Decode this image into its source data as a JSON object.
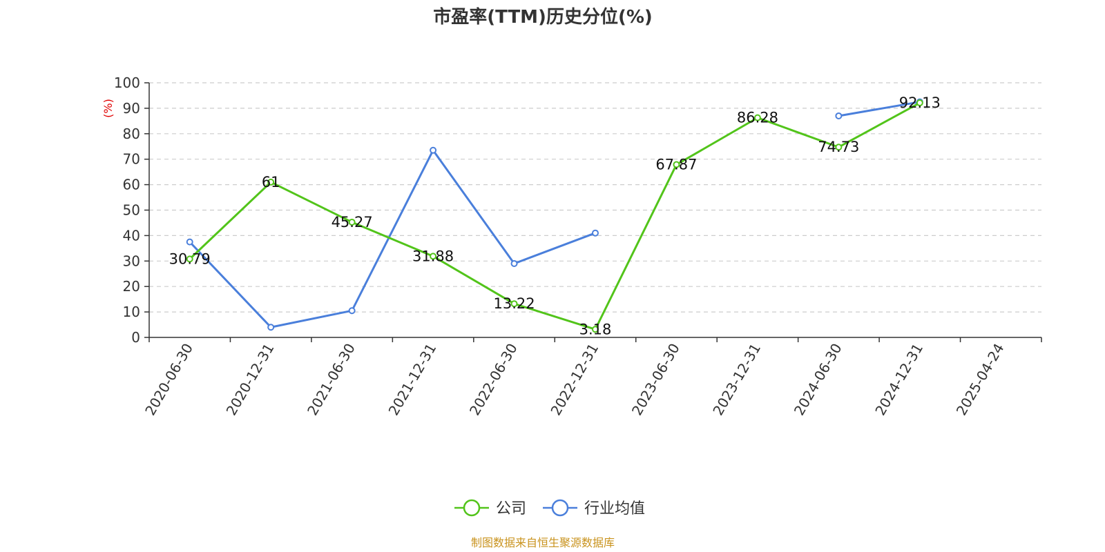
{
  "chart_data": {
    "type": "line",
    "title": "市盈率(TTM)历史分位(%)",
    "ylabel": "(%)",
    "ylim": [
      0,
      100
    ],
    "yticks": [
      0,
      10,
      20,
      30,
      40,
      50,
      60,
      70,
      80,
      90,
      100
    ],
    "categories": [
      "2020-06-30",
      "2020-12-31",
      "2021-06-30",
      "2021-12-31",
      "2022-06-30",
      "2022-12-31",
      "2023-06-30",
      "2023-12-31",
      "2024-06-30",
      "2024-12-31",
      "2025-04-24"
    ],
    "grid": true,
    "legend_position": "bottom",
    "series": [
      {
        "name": "公司",
        "color": "#52c41a",
        "values": [
          30.79,
          61,
          45.27,
          31.88,
          13.22,
          3.18,
          67.87,
          86.28,
          74.73,
          92.13,
          null
        ],
        "labels": [
          "30.79",
          "61",
          "45.27",
          "31.88",
          "13.22",
          "3.18",
          "67.87",
          "86.28",
          "74.73",
          "92.13",
          null
        ]
      },
      {
        "name": "行业均值",
        "color": "#4a7fdb",
        "values": [
          37.5,
          4,
          10.5,
          73.5,
          29,
          41,
          null,
          null,
          87,
          92.5,
          null
        ]
      }
    ]
  },
  "footer": {
    "source": "制图数据来自恒生聚源数据库",
    "source_color": "#c9931e"
  },
  "colors": {
    "axis_label_color": "#e00000"
  }
}
